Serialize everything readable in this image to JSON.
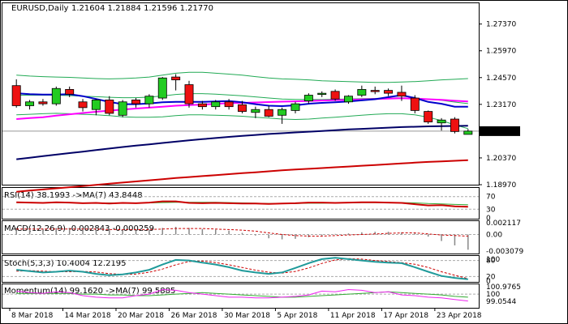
{
  "header": {
    "symbol": "EURUSD,Daily",
    "ohlc": "1.21604 1.21884 1.21596 1.21770"
  },
  "colors": {
    "bull": "#22cc22",
    "bear": "#ee1111",
    "ma_blue": "#0000cc",
    "ma_navy": "#000066",
    "ma_magenta": "#ff00ff",
    "ma_red": "#cc0000",
    "bb": "#22aa55",
    "price_tag": "#000000"
  },
  "chart_data": [
    {
      "type": "candlestick",
      "title": "EURUSD,Daily",
      "ylim": [
        1.1897,
        1.285
      ],
      "y_ticks": [
        1.2737,
        1.2597,
        1.2457,
        1.2317,
        1.2177,
        1.2037,
        1.1897
      ],
      "y_tick_labels": [
        "1.27370",
        "1.25970",
        "1.24570",
        "1.23170",
        "1.21770",
        "1.20370",
        "1.18970"
      ],
      "last_price": 1.2177,
      "last_price_label": "1.21770",
      "x_labels": [
        "8 Mar 2018",
        "14 Mar 2018",
        "20 Mar 2018",
        "26 Mar 2018",
        "30 Mar 2018",
        "5 Apr 2018",
        "11 Apr 2018",
        "17 Apr 2018",
        "23 Apr 2018"
      ],
      "x_label_index": [
        0,
        4,
        8,
        12,
        16,
        20,
        24,
        28,
        32
      ],
      "candles": [
        {
          "o": 1.2415,
          "h": 1.2448,
          "l": 1.23,
          "c": 1.231
        },
        {
          "o": 1.231,
          "h": 1.234,
          "l": 1.229,
          "c": 1.233
        },
        {
          "o": 1.233,
          "h": 1.2345,
          "l": 1.231,
          "c": 1.232
        },
        {
          "o": 1.232,
          "h": 1.241,
          "l": 1.231,
          "c": 1.24
        },
        {
          "o": 1.2395,
          "h": 1.241,
          "l": 1.2355,
          "c": 1.237
        },
        {
          "o": 1.233,
          "h": 1.2345,
          "l": 1.228,
          "c": 1.23
        },
        {
          "o": 1.229,
          "h": 1.2345,
          "l": 1.226,
          "c": 1.234
        },
        {
          "o": 1.234,
          "h": 1.236,
          "l": 1.226,
          "c": 1.227
        },
        {
          "o": 1.226,
          "h": 1.234,
          "l": 1.225,
          "c": 1.233
        },
        {
          "o": 1.234,
          "h": 1.235,
          "l": 1.23,
          "c": 1.232
        },
        {
          "o": 1.232,
          "h": 1.237,
          "l": 1.23,
          "c": 1.236
        },
        {
          "o": 1.235,
          "h": 1.246,
          "l": 1.234,
          "c": 1.2455
        },
        {
          "o": 1.246,
          "h": 1.2475,
          "l": 1.239,
          "c": 1.2445
        },
        {
          "o": 1.242,
          "h": 1.244,
          "l": 1.23,
          "c": 1.232
        },
        {
          "o": 1.232,
          "h": 1.2335,
          "l": 1.229,
          "c": 1.2305
        },
        {
          "o": 1.2305,
          "h": 1.234,
          "l": 1.229,
          "c": 1.233
        },
        {
          "o": 1.233,
          "h": 1.2345,
          "l": 1.229,
          "c": 1.2305
        },
        {
          "o": 1.2315,
          "h": 1.2335,
          "l": 1.227,
          "c": 1.228
        },
        {
          "o": 1.2275,
          "h": 1.2305,
          "l": 1.2245,
          "c": 1.229
        },
        {
          "o": 1.229,
          "h": 1.231,
          "l": 1.225,
          "c": 1.2255
        },
        {
          "o": 1.226,
          "h": 1.23,
          "l": 1.2215,
          "c": 1.229
        },
        {
          "o": 1.2285,
          "h": 1.233,
          "l": 1.227,
          "c": 1.232
        },
        {
          "o": 1.2335,
          "h": 1.2375,
          "l": 1.232,
          "c": 1.2365
        },
        {
          "o": 1.237,
          "h": 1.2385,
          "l": 1.2355,
          "c": 1.2375
        },
        {
          "o": 1.2385,
          "h": 1.2395,
          "l": 1.2335,
          "c": 1.2345
        },
        {
          "o": 1.233,
          "h": 1.2365,
          "l": 1.232,
          "c": 1.236
        },
        {
          "o": 1.2365,
          "h": 1.2415,
          "l": 1.2355,
          "c": 1.2395
        },
        {
          "o": 1.239,
          "h": 1.241,
          "l": 1.237,
          "c": 1.2385
        },
        {
          "o": 1.239,
          "h": 1.24,
          "l": 1.236,
          "c": 1.2375
        },
        {
          "o": 1.238,
          "h": 1.2415,
          "l": 1.2335,
          "c": 1.236
        },
        {
          "o": 1.235,
          "h": 1.2365,
          "l": 1.227,
          "c": 1.2285
        },
        {
          "o": 1.228,
          "h": 1.2285,
          "l": 1.2215,
          "c": 1.2225
        },
        {
          "o": 1.222,
          "h": 1.2245,
          "l": 1.218,
          "c": 1.2235
        },
        {
          "o": 1.224,
          "h": 1.225,
          "l": 1.2165,
          "c": 1.2175
        },
        {
          "o": 1.216,
          "h": 1.2188,
          "l": 1.216,
          "c": 1.2177
        }
      ],
      "series": [
        {
          "name": "ma_blue",
          "values": [
            1.2375,
            1.237,
            1.2368,
            1.2368,
            1.237,
            1.236,
            1.2345,
            1.233,
            1.2318,
            1.2318,
            1.2322,
            1.2328,
            1.233,
            1.233,
            1.233,
            1.2332,
            1.2334,
            1.2328,
            1.2318,
            1.231,
            1.2308,
            1.2312,
            1.232,
            1.2325,
            1.2328,
            1.2332,
            1.2338,
            1.2344,
            1.2355,
            1.2365,
            1.235,
            1.233,
            1.232,
            1.2305,
            1.2305
          ]
        },
        {
          "name": "ma_magenta",
          "values": [
            1.224,
            1.2245,
            1.225,
            1.2258,
            1.2265,
            1.2272,
            1.2278,
            1.2284,
            1.229,
            1.2295,
            1.23,
            1.2305,
            1.231,
            1.2313,
            1.2316,
            1.232,
            1.2323,
            1.2325,
            1.2327,
            1.2329,
            1.2331,
            1.2333,
            1.2335,
            1.2337,
            1.2339,
            1.2341,
            1.2343,
            1.2345,
            1.2347,
            1.2349,
            1.2347,
            1.2344,
            1.2341,
            1.2336,
            1.2332
          ]
        },
        {
          "name": "ma_navy",
          "values": [
            1.203,
            1.2038,
            1.2046,
            1.2054,
            1.2062,
            1.207,
            1.2078,
            1.2086,
            1.2094,
            1.2101,
            1.2108,
            1.2115,
            1.2122,
            1.2129,
            1.2135,
            1.2141,
            1.2147,
            1.2152,
            1.2157,
            1.2162,
            1.2166,
            1.217,
            1.2174,
            1.2178,
            1.2182,
            1.2186,
            1.2189,
            1.2192,
            1.2195,
            1.2198,
            1.22,
            1.2202,
            1.2203,
            1.2204,
            1.2205
          ]
        },
        {
          "name": "ma_red",
          "values": [
            1.186,
            1.1866,
            1.1872,
            1.1878,
            1.1884,
            1.189,
            1.1896,
            1.1902,
            1.1908,
            1.1914,
            1.192,
            1.1926,
            1.1932,
            1.1937,
            1.1942,
            1.1947,
            1.1952,
            1.1957,
            1.1962,
            1.1967,
            1.1972,
            1.1976,
            1.198,
            1.1984,
            1.1988,
            1.1992,
            1.1996,
            1.2,
            1.2004,
            1.2008,
            1.2012,
            1.2016,
            1.2019,
            1.2022,
            1.2025
          ]
        },
        {
          "name": "bb_upper",
          "values": [
            1.247,
            1.2465,
            1.2462,
            1.246,
            1.2458,
            1.2455,
            1.2452,
            1.245,
            1.2452,
            1.2455,
            1.246,
            1.247,
            1.248,
            1.2485,
            1.2485,
            1.248,
            1.2475,
            1.247,
            1.2462,
            1.2455,
            1.245,
            1.2448,
            1.2445,
            1.244,
            1.2438,
            1.2436,
            1.2434,
            1.2432,
            1.2432,
            1.2434,
            1.2436,
            1.244,
            1.2445,
            1.2448,
            1.2452
          ]
        },
        {
          "name": "bb_lower",
          "values": [
            1.2262,
            1.2265,
            1.2268,
            1.227,
            1.2268,
            1.2265,
            1.2262,
            1.2258,
            1.2252,
            1.225,
            1.225,
            1.2252,
            1.2258,
            1.2262,
            1.2262,
            1.226,
            1.2258,
            1.2255,
            1.225,
            1.2245,
            1.224,
            1.2238,
            1.224,
            1.2245,
            1.225,
            1.2255,
            1.226,
            1.2265,
            1.2268,
            1.2268,
            1.2262,
            1.225,
            1.2232,
            1.221,
            1.219
          ]
        },
        {
          "name": "bb_mid",
          "values": [
            1.2365,
            1.2365,
            1.2365,
            1.2365,
            1.2363,
            1.236,
            1.2357,
            1.2354,
            1.2352,
            1.2352,
            1.2355,
            1.2361,
            1.2369,
            1.2373,
            1.2373,
            1.237,
            1.2366,
            1.2362,
            1.2356,
            1.235,
            1.2345,
            1.2343,
            1.2342,
            1.2342,
            1.2344,
            1.2345,
            1.2347,
            1.2348,
            1.235,
            1.2351,
            1.2349,
            1.2345,
            1.2338,
            1.2329,
            1.2321
          ]
        }
      ]
    },
    {
      "type": "line",
      "title": "RSI(14) 38.1993 ->MA(7) 43.8448",
      "ylim": [
        0,
        100
      ],
      "y_ticks": [
        70,
        30,
        0
      ],
      "y_tick_labels": [
        "70",
        "30",
        "0"
      ],
      "series": [
        {
          "name": "RSI(14)",
          "values": [
            52,
            51,
            50,
            52,
            51,
            49,
            50,
            48,
            50,
            49,
            51,
            55,
            55,
            50,
            49,
            50,
            49,
            48,
            48,
            47,
            48,
            49,
            51,
            51,
            50,
            51,
            52,
            52,
            51,
            50,
            46,
            42,
            43,
            39,
            38
          ]
        },
        {
          "name": "MA(7)",
          "values": [
            51,
            51,
            51,
            51,
            51,
            50,
            50,
            50,
            50,
            50,
            50,
            51,
            52,
            52,
            52,
            52,
            51,
            50,
            49,
            48,
            48,
            48,
            49,
            49,
            50,
            50,
            51,
            51,
            51,
            51,
            50,
            48,
            47,
            45,
            44
          ]
        }
      ]
    },
    {
      "type": "bar",
      "title": "MACD(12,26,9) -0.002843 -0.000259",
      "ylim": [
        -0.0035,
        0.0026
      ],
      "y_ticks": [
        0.002117,
        0.0,
        -0.003079
      ],
      "y_tick_labels": [
        "0.002117",
        "0.00",
        "-0.003079"
      ],
      "values": [
        0.0012,
        0.0012,
        0.0011,
        0.0012,
        0.0012,
        0.001,
        0.0009,
        0.0008,
        0.0008,
        0.0008,
        0.0009,
        0.0012,
        0.0014,
        0.0012,
        0.001,
        0.0009,
        0.0007,
        0.0003,
        -0.0002,
        -0.0007,
        -0.0009,
        -0.0008,
        -0.0005,
        -0.0002,
        0.0001,
        0.0002,
        0.0004,
        0.0005,
        0.0005,
        0.0004,
        0.0002,
        -0.0004,
        -0.0012,
        -0.002,
        -0.0028
      ],
      "series": [
        {
          "name": "signal",
          "values": [
            0.001,
            0.001,
            0.001,
            0.001,
            0.001,
            0.001,
            0.001,
            0.0009,
            0.0009,
            0.0009,
            0.0009,
            0.001,
            0.0011,
            0.0011,
            0.0011,
            0.001,
            0.0009,
            0.0008,
            0.0006,
            0.0003,
            0.0,
            -0.0002,
            -0.0003,
            -0.0003,
            -0.0002,
            -0.0001,
            0.0,
            0.0001,
            0.0002,
            0.0003,
            0.0003,
            0.0001,
            -0.0001,
            -0.0002,
            -0.0003
          ]
        }
      ]
    },
    {
      "type": "line",
      "title": "Stoch(5,3,3) 10.4004 12.2195",
      "ylim": [
        0,
        100
      ],
      "y_ticks": [
        80,
        20
      ],
      "y_tick_labels": [
        "80",
        "20"
      ],
      "extra_tick_labels": [
        "100",
        "0"
      ],
      "series": [
        {
          "name": "main",
          "values": [
            45,
            40,
            35,
            38,
            42,
            38,
            30,
            25,
            28,
            35,
            45,
            65,
            82,
            80,
            72,
            65,
            55,
            42,
            35,
            30,
            35,
            52,
            70,
            85,
            90,
            85,
            80,
            75,
            72,
            70,
            55,
            38,
            22,
            15,
            10
          ]
        },
        {
          "name": "signal",
          "values": [
            40,
            42,
            40,
            38,
            38,
            39,
            37,
            31,
            28,
            29,
            36,
            48,
            64,
            76,
            78,
            72,
            64,
            54,
            44,
            36,
            33,
            39,
            52,
            69,
            82,
            87,
            85,
            80,
            76,
            72,
            66,
            54,
            38,
            25,
            12
          ]
        }
      ]
    },
    {
      "type": "line",
      "title": "Momentum(14) 99.1620 ->MA(7) 99.5885",
      "ylim": [
        98.2,
        101.4
      ],
      "y_ticks": [
        100.9765,
        100.0,
        99.0544
      ],
      "y_tick_labels": [
        "100.9765",
        "100",
        "99.0544"
      ],
      "series": [
        {
          "name": "Momentum(14)",
          "values": [
            100.4,
            100.2,
            100.1,
            100.3,
            100.2,
            99.8,
            99.6,
            99.5,
            99.5,
            99.8,
            100.0,
            100.6,
            100.5,
            100.2,
            100.0,
            99.8,
            99.6,
            99.6,
            99.5,
            99.5,
            99.6,
            99.7,
            99.9,
            100.4,
            100.3,
            100.6,
            100.5,
            100.2,
            100.3,
            99.9,
            99.8,
            99.6,
            99.5,
            99.3,
            99.1
          ]
        },
        {
          "name": "MA(7)",
          "values": [
            100.1,
            100.1,
            100.1,
            100.1,
            100.1,
            100.0,
            100.0,
            99.9,
            99.9,
            99.8,
            99.8,
            99.9,
            100.0,
            100.1,
            100.2,
            100.1,
            100.0,
            99.9,
            99.8,
            99.7,
            99.6,
            99.6,
            99.7,
            99.8,
            99.9,
            100.0,
            100.1,
            100.2,
            100.3,
            100.2,
            100.1,
            100.0,
            99.9,
            99.7,
            99.6
          ]
        }
      ]
    }
  ]
}
